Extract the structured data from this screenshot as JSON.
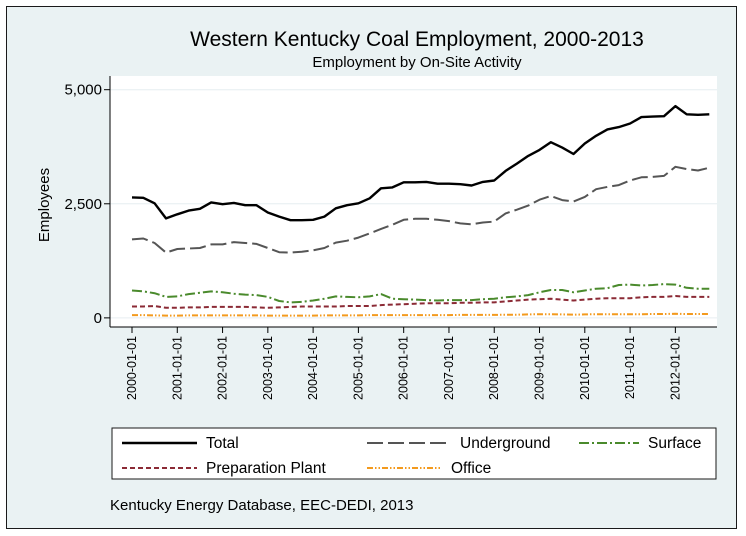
{
  "chart_data": {
    "type": "line",
    "title": "Western Kentucky Coal Employment, 2000-2013",
    "subtitle": "Employment by On-Site Activity",
    "ylabel": "Employees",
    "xlabel": "",
    "ylim": [
      -200,
      5300
    ],
    "yticks": [
      0,
      2500,
      5000
    ],
    "ytick_labels": [
      "0",
      "2,500",
      "5,000"
    ],
    "xtick_labels": [
      "2000-01-01",
      "2001-01-01",
      "2002-01-01",
      "2003-01-01",
      "2004-01-01",
      "2005-01-01",
      "2006-01-01",
      "2007-01-01",
      "2008-01-01",
      "2009-01-01",
      "2010-01-01",
      "2011-01-01",
      "2012-01-01"
    ],
    "x_start": "2000-01-01",
    "x_end": "2013-10-01",
    "x_unit": "quarter",
    "grid": "horizontal",
    "legend_position": "bottom",
    "series": [
      {
        "name": "Total",
        "color": "#000000",
        "dash": "solid",
        "values": [
          2640,
          2630,
          2510,
          2180,
          2270,
          2350,
          2390,
          2530,
          2490,
          2520,
          2470,
          2470,
          2310,
          2220,
          2140,
          2140,
          2150,
          2220,
          2400,
          2470,
          2510,
          2620,
          2840,
          2860,
          2970,
          2970,
          2980,
          2940,
          2940,
          2930,
          2900,
          2980,
          3010,
          3220,
          3380,
          3550,
          3680,
          3850,
          3730,
          3590,
          3820,
          3990,
          4130,
          4180,
          4260,
          4400,
          4410,
          4420,
          4640,
          4460,
          4450,
          4460
        ]
      },
      {
        "name": "Underground",
        "color": "#555555",
        "dash": "long-dash",
        "values": [
          1720,
          1740,
          1640,
          1430,
          1510,
          1520,
          1530,
          1610,
          1610,
          1660,
          1640,
          1620,
          1530,
          1440,
          1430,
          1450,
          1480,
          1530,
          1650,
          1690,
          1760,
          1850,
          1950,
          2040,
          2150,
          2170,
          2170,
          2150,
          2120,
          2070,
          2050,
          2090,
          2110,
          2290,
          2370,
          2460,
          2590,
          2670,
          2580,
          2550,
          2650,
          2820,
          2870,
          2910,
          3010,
          3080,
          3090,
          3110,
          3310,
          3260,
          3230,
          3290
        ]
      },
      {
        "name": "Surface",
        "color": "#4a8a2c",
        "dash": "dash-dot",
        "values": [
          600,
          580,
          540,
          460,
          470,
          520,
          550,
          580,
          560,
          530,
          510,
          500,
          460,
          370,
          340,
          350,
          380,
          420,
          470,
          460,
          450,
          470,
          520,
          420,
          410,
          400,
          390,
          380,
          390,
          390,
          390,
          410,
          420,
          450,
          470,
          500,
          560,
          610,
          610,
          560,
          600,
          640,
          650,
          720,
          730,
          710,
          720,
          740,
          730,
          660,
          640,
          640
        ]
      },
      {
        "name": "Preparation Plant",
        "color": "#8b2a35",
        "dash": "short-dash",
        "values": [
          250,
          250,
          260,
          220,
          220,
          230,
          230,
          240,
          240,
          240,
          240,
          230,
          220,
          230,
          240,
          250,
          250,
          250,
          250,
          260,
          260,
          260,
          280,
          290,
          300,
          310,
          320,
          320,
          320,
          330,
          330,
          340,
          340,
          360,
          380,
          400,
          410,
          420,
          400,
          380,
          400,
          420,
          430,
          430,
          430,
          450,
          460,
          460,
          480,
          460,
          460,
          460
        ]
      },
      {
        "name": "Office",
        "color": "#f39a1e",
        "dash": "dash-dot-dot",
        "values": [
          60,
          60,
          55,
          50,
          50,
          55,
          55,
          55,
          55,
          55,
          55,
          55,
          50,
          50,
          50,
          50,
          50,
          55,
          55,
          55,
          55,
          60,
          60,
          60,
          60,
          60,
          60,
          60,
          60,
          65,
          65,
          65,
          65,
          70,
          70,
          75,
          80,
          80,
          75,
          70,
          75,
          80,
          80,
          80,
          80,
          80,
          85,
          85,
          90,
          85,
          85,
          85
        ]
      }
    ],
    "note": "Kentucky Energy Database, EEC-DEDI, 2013"
  }
}
